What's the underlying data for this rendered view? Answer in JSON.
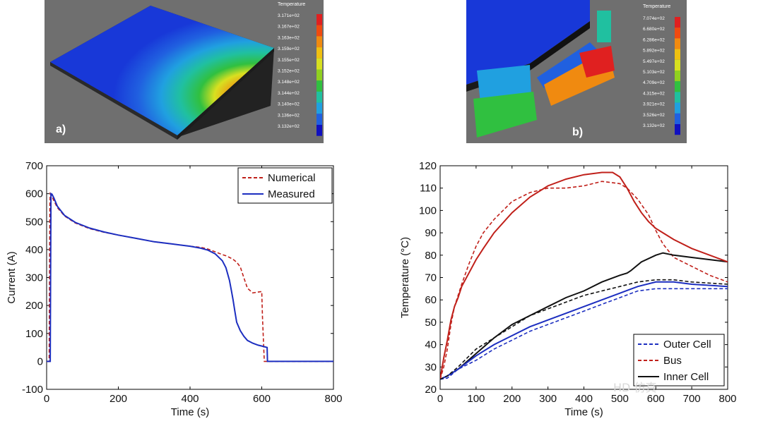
{
  "panel_a": {
    "label": "a)",
    "legend_title": "Temperature",
    "ticks": [
      "3.171e+02",
      "3.167e+02",
      "3.163e+02",
      "3.159e+02",
      "3.155e+02",
      "3.152e+02",
      "3.148e+02",
      "3.144e+02",
      "3.140e+02",
      "3.136e+02",
      "3.132e+02"
    ],
    "colors": [
      "#e02020",
      "#f04a10",
      "#f08a10",
      "#f0c010",
      "#d8e020",
      "#90d020",
      "#30c040",
      "#20c0a0",
      "#20a0e0",
      "#2060e0",
      "#1010c0"
    ]
  },
  "panel_b": {
    "label": "b)",
    "legend_title": "Temperature",
    "ticks": [
      "7.074e+02",
      "6.680e+02",
      "6.286e+02",
      "5.892e+02",
      "5.497e+02",
      "5.103e+02",
      "4.709e+02",
      "4.315e+02",
      "3.921e+02",
      "3.526e+02",
      "3.132e+02"
    ],
    "colors": [
      "#e02020",
      "#f04a10",
      "#f08a10",
      "#f0c010",
      "#d8e020",
      "#90d020",
      "#30c040",
      "#20c0a0",
      "#20a0e0",
      "#2060e0",
      "#1010c0"
    ]
  },
  "watermark": "HD 仿真",
  "chart_data": [
    {
      "type": "line",
      "xlabel": "Time (s)",
      "ylabel": "Current (A)",
      "xlim": [
        0,
        800
      ],
      "ylim": [
        -100,
        700
      ],
      "xticks": [
        0,
        200,
        400,
        600,
        800
      ],
      "yticks": [
        -100,
        0,
        100,
        200,
        300,
        400,
        500,
        600,
        700
      ],
      "legend": "top-right",
      "series": [
        {
          "name": "Numerical",
          "color": "#c0201a",
          "dash": true,
          "x": [
            0,
            7,
            8,
            9,
            10,
            15,
            20,
            30,
            50,
            80,
            120,
            160,
            200,
            250,
            300,
            350,
            400,
            430,
            450,
            470,
            490,
            500,
            510,
            520,
            530,
            540,
            550,
            560,
            575,
            590,
            600,
            602,
            607,
            608,
            800
          ],
          "y": [
            0,
            0,
            300,
            560,
            600,
            590,
            575,
            550,
            520,
            495,
            475,
            462,
            452,
            440,
            428,
            420,
            412,
            408,
            402,
            392,
            382,
            378,
            372,
            365,
            355,
            338,
            300,
            262,
            245,
            248,
            250,
            160,
            0,
            0,
            0
          ]
        },
        {
          "name": "Measured",
          "color": "#1c2ec0",
          "dash": false,
          "x": [
            0,
            10,
            11,
            12,
            15,
            20,
            30,
            50,
            80,
            120,
            160,
            200,
            250,
            300,
            350,
            400,
            430,
            450,
            470,
            490,
            500,
            510,
            515,
            520,
            525,
            530,
            540,
            550,
            560,
            575,
            590,
            600,
            615,
            616,
            800
          ],
          "y": [
            0,
            0,
            300,
            600,
            598,
            585,
            555,
            522,
            497,
            477,
            463,
            452,
            440,
            428,
            420,
            412,
            405,
            398,
            385,
            360,
            335,
            290,
            255,
            220,
            180,
            140,
            110,
            90,
            75,
            65,
            58,
            55,
            50,
            0,
            0
          ]
        }
      ]
    },
    {
      "type": "line",
      "xlabel": "Time (s)",
      "ylabel": "Temperature (°C)",
      "xlim": [
        0,
        800
      ],
      "ylim": [
        20,
        120
      ],
      "xticks": [
        0,
        100,
        200,
        300,
        400,
        500,
        600,
        700,
        800
      ],
      "yticks": [
        20,
        30,
        40,
        50,
        60,
        70,
        80,
        90,
        100,
        110,
        120
      ],
      "legend": "bottom-right",
      "series": [
        {
          "name": "Outer Cell",
          "color": "#1c2ec0",
          "dash": true,
          "x": [
            0,
            20,
            50,
            100,
            150,
            200,
            250,
            300,
            350,
            400,
            450,
            500,
            550,
            600,
            650,
            700,
            800
          ],
          "y": [
            24.5,
            25,
            29,
            33,
            38,
            42,
            46,
            49,
            52,
            55,
            58,
            61,
            64,
            65,
            65,
            65,
            65
          ]
        },
        {
          "name": "Bus",
          "color": "#c0201a",
          "dash": true,
          "x": [
            0,
            10,
            20,
            30,
            40,
            50,
            60,
            80,
            100,
            120,
            150,
            200,
            250,
            300,
            350,
            400,
            450,
            500,
            520,
            550,
            580,
            600,
            620,
            650,
            700,
            750,
            800
          ],
          "y": [
            24.5,
            30,
            38,
            49,
            57,
            62,
            67,
            76,
            84,
            90,
            96,
            104,
            108,
            110,
            110,
            111,
            113,
            112,
            110,
            105,
            98,
            91,
            85,
            79,
            75,
            71,
            68
          ]
        },
        {
          "name": "Inner Cell",
          "color": "#111111",
          "dash": false,
          "x": [
            0,
            20,
            50,
            100,
            150,
            200,
            250,
            300,
            350,
            400,
            450,
            500,
            520,
            530,
            560,
            600,
            620,
            650,
            700,
            750,
            800
          ],
          "y": [
            24.5,
            26,
            29,
            36,
            43,
            49,
            53,
            57,
            61,
            64,
            68,
            71,
            72,
            73,
            77,
            80,
            81,
            80,
            79,
            78,
            77
          ]
        },
        {
          "name": "",
          "color": "#1c2ec0",
          "dash": false,
          "x": [
            0,
            20,
            50,
            100,
            150,
            200,
            250,
            300,
            350,
            400,
            450,
            500,
            550,
            600,
            650,
            700,
            800
          ],
          "y": [
            24.5,
            26,
            29,
            35,
            40,
            44,
            48,
            51,
            54,
            57,
            60,
            63,
            66,
            68,
            68,
            67,
            66
          ]
        },
        {
          "name": "",
          "color": "#c0201a",
          "dash": false,
          "x": [
            0,
            10,
            20,
            30,
            40,
            50,
            60,
            80,
            100,
            120,
            150,
            200,
            250,
            300,
            350,
            400,
            450,
            480,
            500,
            520,
            540,
            560,
            580,
            600,
            620,
            650,
            700,
            750,
            800
          ],
          "y": [
            24.5,
            34,
            42,
            51,
            57,
            61,
            66,
            72,
            78,
            83,
            90,
            99,
            106,
            111,
            114,
            116,
            117,
            117,
            115,
            110,
            104,
            99,
            95,
            92,
            90,
            87,
            83,
            80,
            77
          ]
        },
        {
          "name": "",
          "color": "#111111",
          "dash": true,
          "x": [
            0,
            20,
            50,
            100,
            150,
            200,
            250,
            300,
            350,
            400,
            450,
            500,
            550,
            600,
            650,
            700,
            800
          ],
          "y": [
            24.5,
            26,
            30,
            38,
            43,
            48,
            53,
            56,
            59,
            62,
            64,
            66,
            68,
            69,
            69,
            68,
            67
          ]
        }
      ]
    }
  ]
}
